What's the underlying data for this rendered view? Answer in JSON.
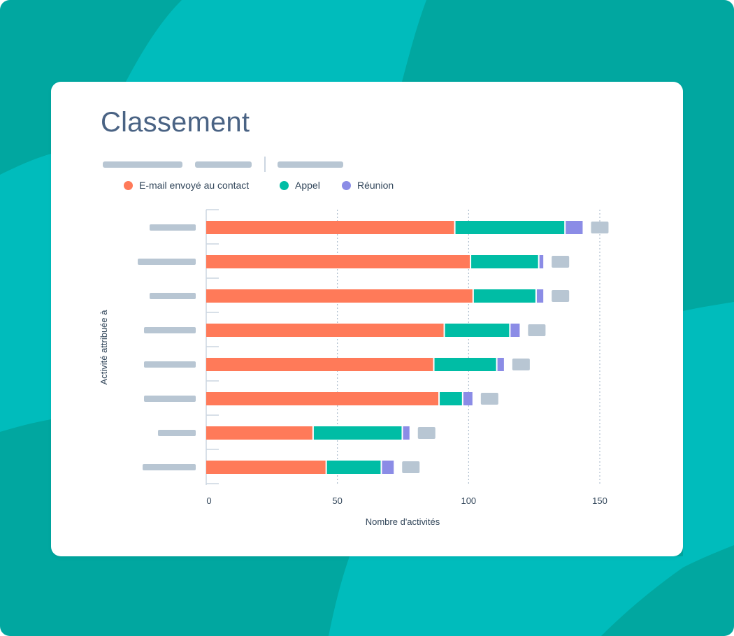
{
  "title": "Classement",
  "colors": {
    "background": "#01a7a0",
    "background_light": "#00bcbc",
    "card": "#ffffff",
    "email": "#ff7a59",
    "appel": "#00bda5",
    "reunion": "#8b8ce6",
    "placeholder": "#b8c6d3",
    "text": "#33475b",
    "title": "#4a6384"
  },
  "filters": [
    "placeholder-bar",
    "placeholder-bar",
    "placeholder-bar"
  ],
  "chart_data": {
    "type": "bar",
    "orientation": "horizontal",
    "stacked": true,
    "title": "Classement",
    "xlabel": "Nombre d'activités",
    "ylabel": "Activité attribuée à",
    "xlim": [
      0,
      150
    ],
    "xticks": [
      0,
      50,
      100,
      150
    ],
    "grid": true,
    "legend_position": "top-left",
    "categories": [
      "",
      "",
      "",
      "",
      "",
      "",
      "",
      ""
    ],
    "series": [
      {
        "name": "E-mail envoyé au contact",
        "color": "#ff7a59",
        "values": [
          95,
          101,
          102,
          91,
          87,
          89,
          41,
          46
        ]
      },
      {
        "name": "Appel",
        "color": "#00bda5",
        "values": [
          42,
          26,
          24,
          25,
          24,
          9,
          34,
          21
        ]
      },
      {
        "name": "Réunion",
        "color": "#8b8ce6",
        "values": [
          7,
          2,
          3,
          4,
          3,
          4,
          3,
          5
        ]
      }
    ]
  }
}
